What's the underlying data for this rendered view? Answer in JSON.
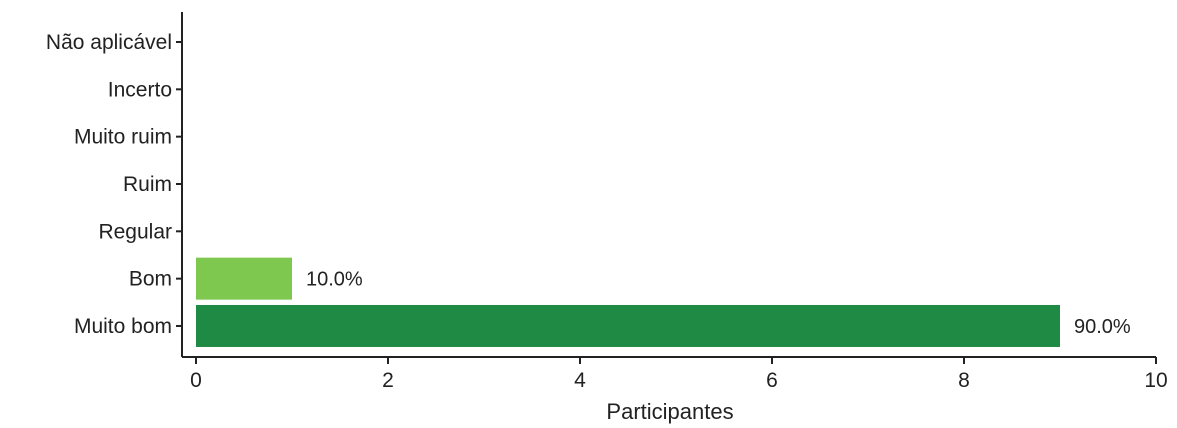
{
  "chart_data": {
    "type": "bar",
    "orientation": "horizontal",
    "categories": [
      "Não aplicável",
      "Incerto",
      "Muito ruim",
      "Ruim",
      "Regular",
      "Bom",
      "Muito bom"
    ],
    "values": [
      0,
      0,
      0,
      0,
      0,
      1,
      9
    ],
    "data_labels": [
      "",
      "",
      "",
      "",
      "",
      "10.0%",
      "90.0%"
    ],
    "colors": [
      "#ffffff",
      "#ffffff",
      "#ffffff",
      "#ffffff",
      "#ffffff",
      "#7ec850",
      "#1e8a44"
    ],
    "xlabel": "Participantes",
    "ylabel": "",
    "title": "",
    "xlim": [
      0,
      10
    ],
    "xticks": [
      0,
      2,
      4,
      6,
      8,
      10
    ],
    "grid": false,
    "legend": "none"
  }
}
